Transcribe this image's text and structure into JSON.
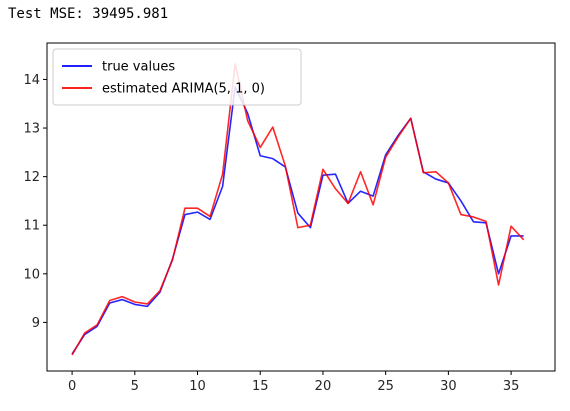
{
  "output": {
    "text": "Test MSE: 39495.981"
  },
  "chart_data": {
    "type": "line",
    "title": "",
    "xlabel": "",
    "ylabel": "",
    "xlim": [
      -2,
      38.5
    ],
    "ylim": [
      8.0,
      14.75
    ],
    "x_ticks": [
      0,
      5,
      10,
      15,
      20,
      25,
      30,
      35
    ],
    "y_ticks": [
      9,
      10,
      11,
      12,
      13,
      14
    ],
    "grid": false,
    "legend": {
      "position": "upper-left"
    },
    "series": [
      {
        "name": "true values",
        "color": "#0000ff",
        "x": [
          0,
          1,
          2,
          3,
          4,
          5,
          6,
          7,
          8,
          9,
          10,
          11,
          12,
          13,
          14,
          15,
          16,
          17,
          18,
          19,
          20,
          21,
          22,
          23,
          24,
          25,
          26,
          27,
          28,
          29,
          30,
          31,
          32,
          33,
          34,
          35,
          36
        ],
        "values": [
          8.35,
          8.75,
          8.92,
          9.4,
          9.47,
          9.37,
          9.33,
          9.62,
          10.3,
          11.22,
          11.27,
          11.12,
          11.8,
          13.85,
          13.3,
          12.43,
          12.37,
          12.2,
          11.25,
          10.95,
          12.03,
          12.05,
          11.45,
          11.7,
          11.6,
          12.45,
          12.85,
          13.2,
          12.1,
          11.95,
          11.87,
          11.5,
          11.07,
          11.05,
          10.0,
          10.78,
          10.78
        ]
      },
      {
        "name": "estimated ARIMA(5, 1, 0)",
        "color": "#ff0000",
        "x": [
          0,
          1,
          2,
          3,
          4,
          5,
          6,
          7,
          8,
          9,
          10,
          11,
          12,
          13,
          14,
          15,
          16,
          17,
          18,
          19,
          20,
          21,
          22,
          23,
          24,
          25,
          26,
          27,
          28,
          29,
          30,
          31,
          32,
          33,
          34,
          35,
          36
        ],
        "values": [
          8.33,
          8.78,
          8.95,
          9.45,
          9.53,
          9.42,
          9.38,
          9.65,
          10.28,
          11.35,
          11.35,
          11.18,
          12.05,
          14.32,
          13.15,
          12.6,
          13.02,
          12.22,
          10.95,
          11.0,
          12.15,
          11.75,
          11.45,
          12.1,
          11.42,
          12.4,
          12.82,
          13.2,
          12.08,
          12.1,
          11.87,
          11.22,
          11.17,
          11.08,
          9.77,
          10.98,
          10.7
        ]
      }
    ]
  }
}
